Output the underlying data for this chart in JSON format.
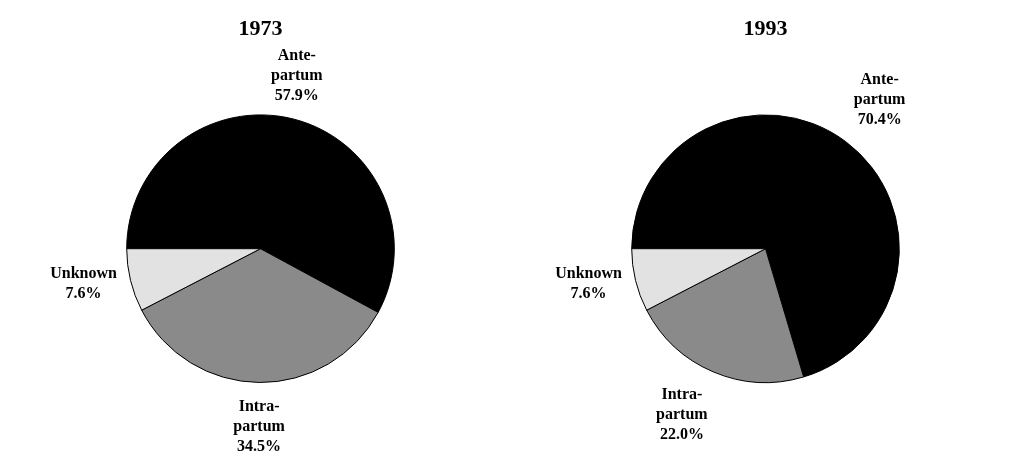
{
  "chart_data": [
    {
      "type": "pie",
      "title": "1973",
      "categories": [
        "Ante-partum",
        "Intra-partum",
        "Unknown"
      ],
      "values": [
        57.9,
        34.5,
        7.6
      ],
      "value_labels": [
        "57.9%",
        "34.5%",
        "7.6%"
      ],
      "colors": [
        "#000000",
        "#8a8a8a",
        "#e2e2e2"
      ]
    },
    {
      "type": "pie",
      "title": "1993",
      "categories": [
        "Ante-partum",
        "Intra-partum",
        "Unknown"
      ],
      "values": [
        70.4,
        22.0,
        7.6
      ],
      "value_labels": [
        "70.4%",
        "22.0%",
        "7.6%"
      ],
      "colors": [
        "#000000",
        "#8a8a8a",
        "#e2e2e2"
      ]
    }
  ]
}
